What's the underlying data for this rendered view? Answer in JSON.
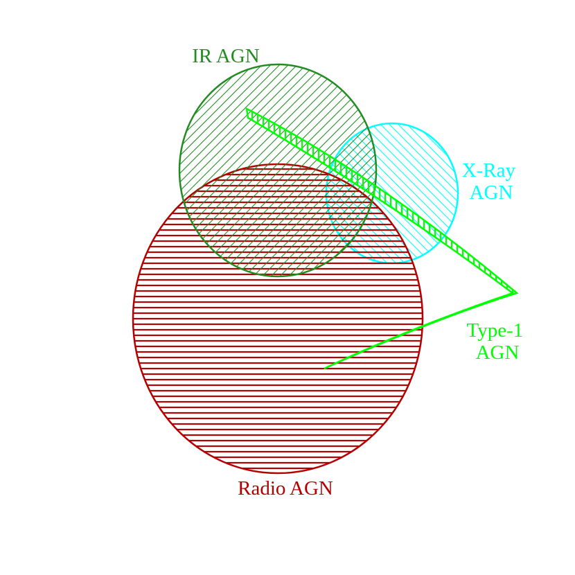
{
  "diagram": {
    "sets": [
      {
        "id": "radio",
        "label_lines": [
          "Radio AGN"
        ],
        "color": "#b30000",
        "hatch": "horizontal"
      },
      {
        "id": "ir",
        "label_lines": [
          "IR AGN"
        ],
        "color": "#228b22",
        "hatch": "diagonal-down"
      },
      {
        "id": "xray",
        "label_lines": [
          "X-Ray",
          "AGN"
        ],
        "color": "#00ffff",
        "hatch": "diagonal-up"
      },
      {
        "id": "type1",
        "label_lines": [
          "Type-1",
          "AGN"
        ],
        "color": "#00ff00",
        "hatch": "vertical"
      }
    ]
  }
}
